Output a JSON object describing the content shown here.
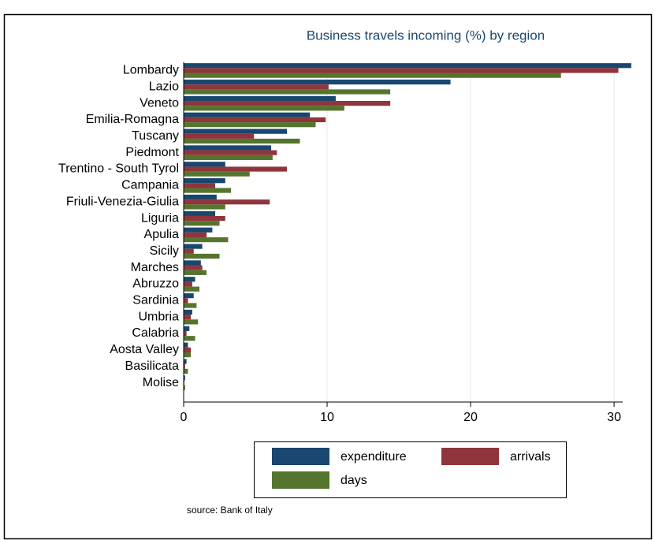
{
  "chart_data": {
    "type": "bar",
    "orientation": "horizontal",
    "title": "Business travels incoming (%) by region",
    "source": "source: Bank of Italy",
    "categories": [
      "Lombardy",
      "Lazio",
      "Veneto",
      "Emilia-Romagna",
      "Tuscany",
      "Piedmont",
      "Trentino - South Tyrol",
      "Campania",
      "Friuli-Venezia-Giulia",
      "Liguria",
      "Apulia",
      "Sicily",
      "Marches",
      "Abruzzo",
      "Sardinia",
      "Umbria",
      "Calabria",
      "Aosta Valley",
      "Basilicata",
      "Molise"
    ],
    "series": [
      {
        "name": "expenditure",
        "color": "#1a476f",
        "values": [
          31.2,
          18.6,
          10.6,
          8.8,
          7.2,
          6.1,
          2.9,
          2.9,
          2.3,
          2.2,
          2.0,
          1.3,
          1.2,
          0.8,
          0.7,
          0.6,
          0.4,
          0.3,
          0.2,
          0.1
        ]
      },
      {
        "name": "arrivals",
        "color": "#90353b",
        "values": [
          30.3,
          10.1,
          14.4,
          9.9,
          4.9,
          6.5,
          7.2,
          2.2,
          6.0,
          2.9,
          1.6,
          0.7,
          1.3,
          0.6,
          0.3,
          0.5,
          0.2,
          0.5,
          0.1,
          0.05
        ]
      },
      {
        "name": "days",
        "color": "#55752f",
        "values": [
          26.3,
          14.4,
          11.2,
          9.2,
          8.1,
          6.2,
          4.6,
          3.3,
          2.9,
          2.5,
          3.1,
          2.5,
          1.6,
          1.1,
          0.9,
          1.0,
          0.8,
          0.5,
          0.3,
          0.1
        ]
      }
    ],
    "xlim": [
      0,
      30.6
    ],
    "xticks": [
      0,
      10,
      20,
      30
    ],
    "grid": true,
    "legend": "bottom"
  }
}
